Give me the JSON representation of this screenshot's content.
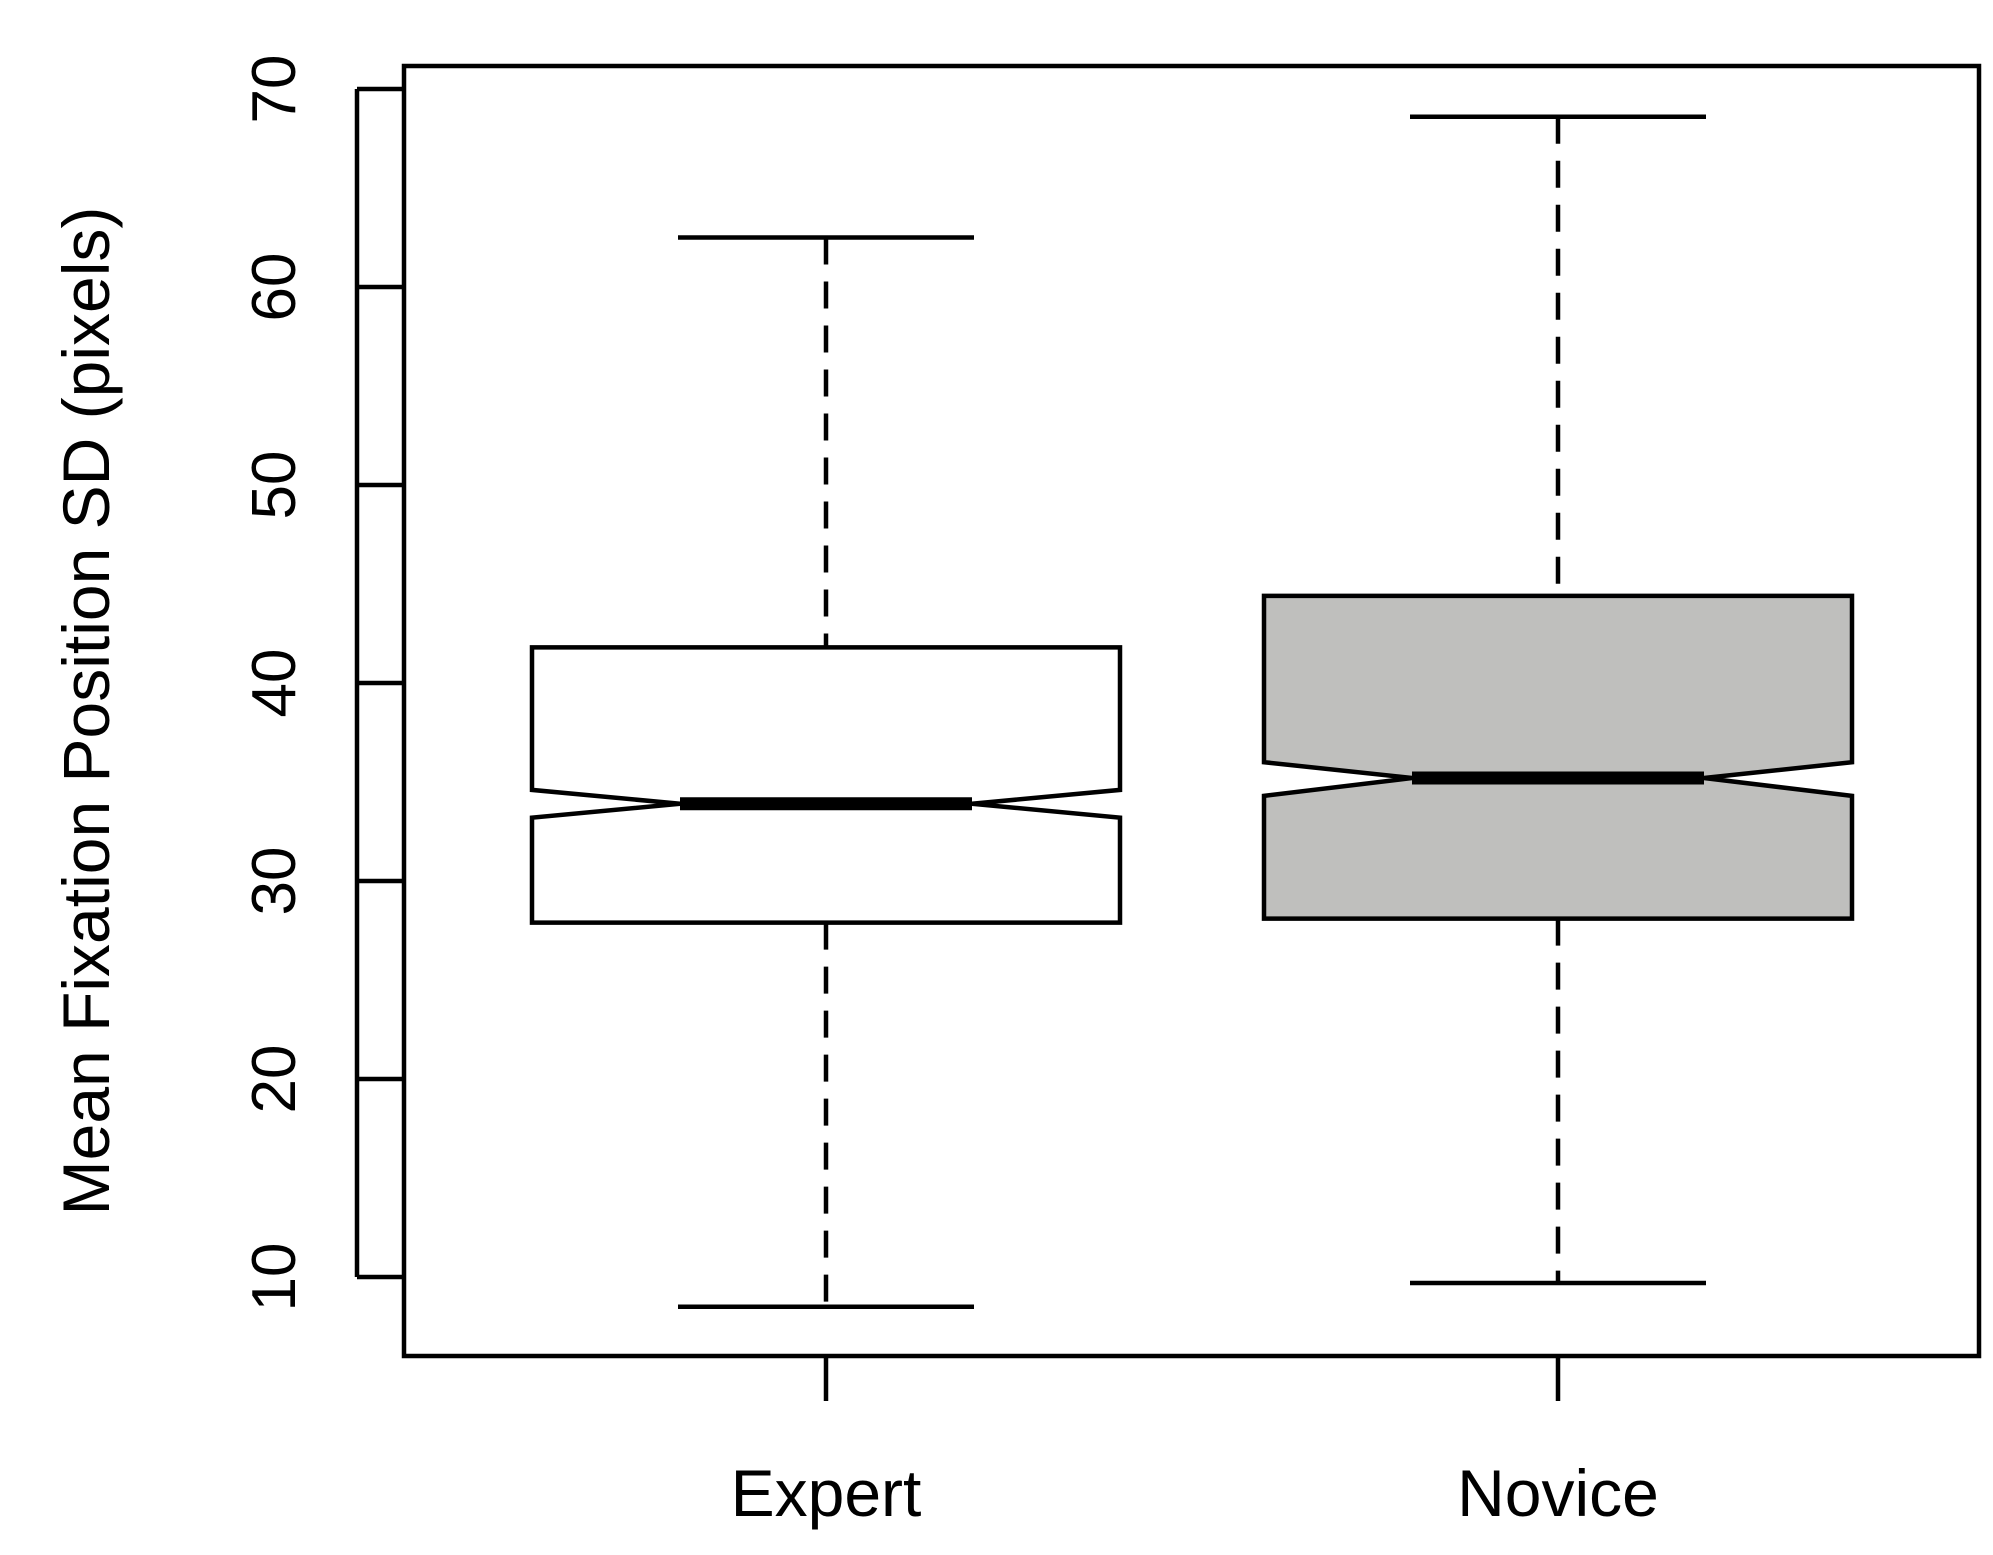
{
  "chart_data": {
    "type": "boxplot",
    "notched": true,
    "title": "",
    "xlabel": "",
    "ylabel": "Mean Fixation Position SD (pixels)",
    "ylim": [
      6,
      76
    ],
    "yticks": [
      10,
      20,
      30,
      40,
      50,
      60,
      70
    ],
    "grid": false,
    "legend": "none",
    "categories": [
      "Expert",
      "Novice"
    ],
    "series": [
      {
        "category": "Expert",
        "whisker_low": 8.5,
        "q1": 27.9,
        "notch_low": 33.2,
        "median": 33.9,
        "notch_high": 34.6,
        "q3": 41.8,
        "whisker_high": 62.5,
        "fill": "#ffffff"
      },
      {
        "category": "Novice",
        "whisker_low": 9.7,
        "q1": 28.1,
        "notch_low": 34.3,
        "median": 35.2,
        "notch_high": 36.0,
        "q3": 44.4,
        "whisker_high": 68.6,
        "fill": "#bfbfbd"
      }
    ],
    "colors": {
      "stroke": "#000000",
      "background": "#ffffff"
    }
  }
}
